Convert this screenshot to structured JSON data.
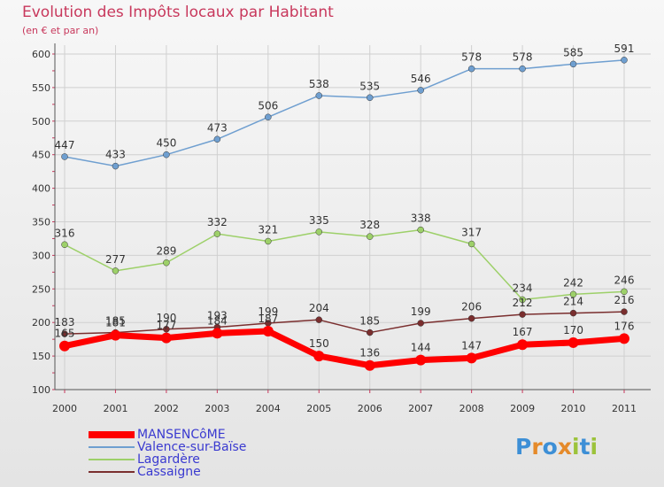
{
  "header": {
    "title": "Evolution des Impôts locaux par Habitant",
    "subtitle": "(en € et par an)"
  },
  "logo": {
    "text": "Proxiti"
  },
  "colors": {
    "title": "#c8385c",
    "legend_text": "#3a3ad0",
    "axis": "#555555",
    "gridline": "#d0d0d0",
    "tick_mark": "#c8385c"
  },
  "chart_data": {
    "type": "line",
    "title": "Evolution des Impôts locaux par Habitant",
    "subtitle": "(en € et par an)",
    "xlabel": "",
    "ylabel": "",
    "categories": [
      "2000",
      "2001",
      "2002",
      "2003",
      "2004",
      "2005",
      "2006",
      "2007",
      "2008",
      "2009",
      "2010",
      "2011"
    ],
    "ylim": [
      100,
      600
    ],
    "yticks": [
      100,
      150,
      200,
      250,
      300,
      350,
      400,
      450,
      500,
      550,
      600
    ],
    "grid": true,
    "legend_placement": "bottom-left",
    "series": [
      {
        "name": "MANSENCôME",
        "color": "#ff0000",
        "values": [
          165,
          181,
          177,
          184,
          187,
          150,
          136,
          144,
          147,
          167,
          170,
          176
        ]
      },
      {
        "name": "Valence-sur-Baïse",
        "color": "#6f9fd0",
        "values": [
          447,
          433,
          450,
          473,
          506,
          538,
          535,
          546,
          578,
          578,
          585,
          591
        ]
      },
      {
        "name": "Lagardère",
        "color": "#9dd069",
        "values": [
          316,
          277,
          289,
          332,
          321,
          335,
          328,
          338,
          317,
          234,
          242,
          246
        ]
      },
      {
        "name": "Cassaigne",
        "color": "#7a2e2e",
        "values": [
          183,
          185,
          190,
          193,
          199,
          204,
          185,
          199,
          206,
          212,
          214,
          216
        ]
      }
    ]
  }
}
